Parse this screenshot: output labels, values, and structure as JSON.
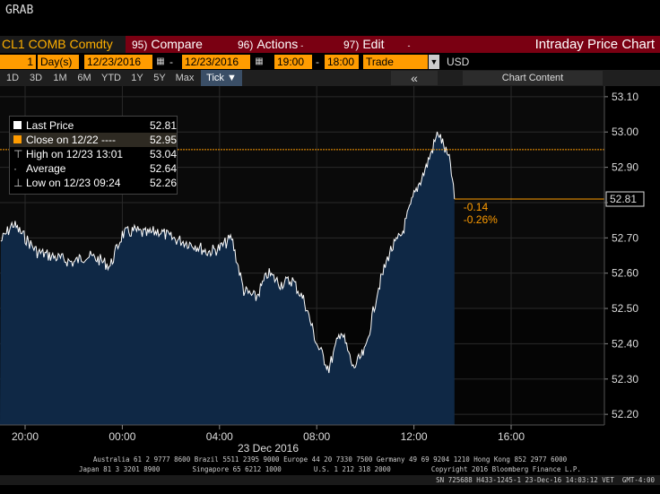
{
  "app": {
    "command": "GRAB"
  },
  "header": {
    "ticker": "CL1 COMB Comdty",
    "menus": [
      {
        "num": "95)",
        "label": "Compare"
      },
      {
        "num": "96)",
        "label": "Actions"
      },
      {
        "num": "97)",
        "label": "Edit"
      }
    ],
    "title": "Intraday Price Chart"
  },
  "controls": {
    "period_num": "1",
    "period_unit": "Day(s)",
    "start_date": "12/23/2016",
    "end_date": "12/23/2016",
    "start_time": "19:00",
    "end_time": "18:00",
    "field": "Trade",
    "currency": "USD"
  },
  "timeframes": [
    "1D",
    "3D",
    "1M",
    "6M",
    "YTD",
    "1Y",
    "5Y",
    "Max",
    "Tick ▼"
  ],
  "toolbar": {
    "collapse": "«",
    "chart_content": "Chart Content"
  },
  "legend": [
    {
      "label": "Last Price",
      "value": "52.81",
      "marker": "square-white"
    },
    {
      "label": "Close on 12/22 ----",
      "value": "52.95",
      "marker": "square-orange"
    },
    {
      "label": "High on 12/23 13:01",
      "value": "53.04",
      "marker": "high-bar"
    },
    {
      "label": "Average",
      "value": "52.64",
      "marker": "dot-line"
    },
    {
      "label": "Low on 12/23 09:24",
      "value": "52.26",
      "marker": "low-bar"
    }
  ],
  "chart_data": {
    "type": "area",
    "series": [
      {
        "name": "Last Price",
        "x": [
          "19:00",
          "19:30",
          "20:00",
          "20:30",
          "21:00",
          "21:30",
          "22:00",
          "22:30",
          "23:00",
          "23:30",
          "00:00",
          "00:30",
          "01:00",
          "01:30",
          "02:00",
          "02:30",
          "03:00",
          "03:30",
          "04:00",
          "04:30",
          "05:00",
          "05:30",
          "06:00",
          "06:30",
          "07:00",
          "07:30",
          "08:00",
          "08:30",
          "09:00",
          "09:30",
          "10:00",
          "10:30",
          "11:00",
          "11:30",
          "12:00",
          "12:30",
          "13:00",
          "13:30",
          "13:40"
        ],
        "values": [
          52.69,
          52.74,
          52.7,
          52.66,
          52.65,
          52.64,
          52.63,
          52.65,
          52.64,
          52.62,
          52.71,
          52.72,
          52.71,
          52.72,
          52.7,
          52.69,
          52.68,
          52.66,
          52.67,
          52.7,
          52.55,
          52.53,
          52.6,
          52.57,
          52.58,
          52.52,
          52.4,
          52.33,
          52.44,
          52.33,
          52.38,
          52.55,
          52.66,
          52.71,
          52.82,
          52.9,
          53.0,
          52.91,
          52.81
        ]
      }
    ],
    "close_prior": 52.95,
    "last_price": "52.81",
    "change": "-0.14",
    "change_pct": "-0.26%",
    "y_ticks": [
      "53.10",
      "53.00",
      "52.90",
      "52.80",
      "52.70",
      "52.60",
      "52.50",
      "52.40",
      "52.30",
      "52.20"
    ],
    "ylim": [
      52.18,
      53.12
    ],
    "x_ticks": [
      "20:00",
      "00:00",
      "04:00",
      "08:00",
      "12:00",
      "16:00"
    ],
    "date_label": "23 Dec 2016",
    "grid": true
  },
  "footer": {
    "line1": "Australia 61 2 9777 8600 Brazil 5511 2395 9000 Europe 44 20 7330 7500 Germany 49 69 9204 1210 Hong Kong 852 2977 6000",
    "line2": "Japan 81 3 3201 8900        Singapore 65 6212 1000        U.S. 1 212 318 2000          Copyright 2016 Bloomberg Finance L.P.",
    "line3": "SN 725688 H433-1245-1 23-Dec-16 14:03:12 VET  GMT-4:00"
  },
  "colors": {
    "accent": "#ff9c00",
    "header": "#7a0012",
    "fill": "#0f2845",
    "price_line": "#ffffff",
    "grid": "#3a3a3a"
  }
}
